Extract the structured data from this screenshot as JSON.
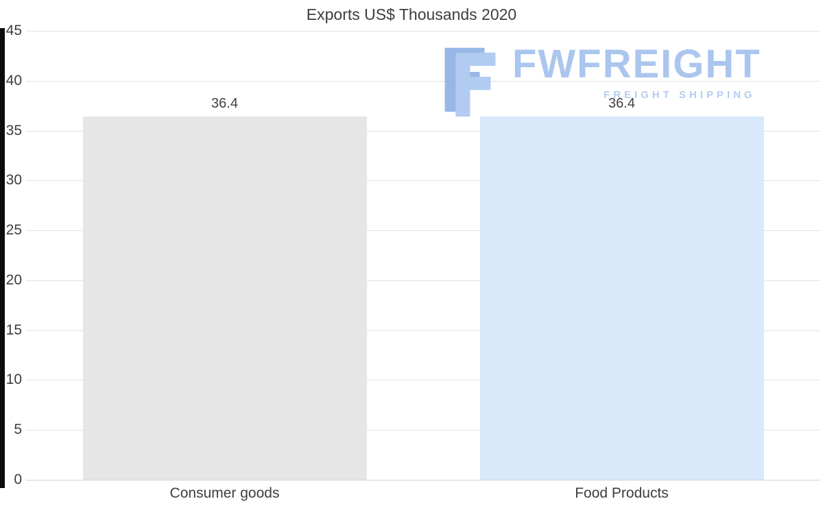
{
  "title": "Exports US$ Thousands 2020",
  "watermark": {
    "brand": "FWFREIGHT",
    "tagline": "FREIGHT SHIPPING",
    "logo_icon": "stylized-F-icon",
    "brand_color": "#a6c3ee",
    "tagline_color": "#b1caf1"
  },
  "chart_data": {
    "type": "bar",
    "title": "Exports US$ Thousands 2020",
    "categories": [
      "Consumer goods",
      "Food Products"
    ],
    "values": [
      36.4,
      36.4
    ],
    "data_labels": [
      "36.4",
      "36.4"
    ],
    "bar_colors": [
      "#e6e6e6",
      "#d9e8fb"
    ],
    "xlabel": "",
    "ylabel": "",
    "ylim": [
      0,
      45
    ],
    "yticks": [
      0,
      5,
      10,
      15,
      20,
      25,
      30,
      35,
      40,
      45
    ],
    "grid": true,
    "legend": false,
    "label_color": "#3d3d3d",
    "gridline_color": "#e2e2e2"
  }
}
